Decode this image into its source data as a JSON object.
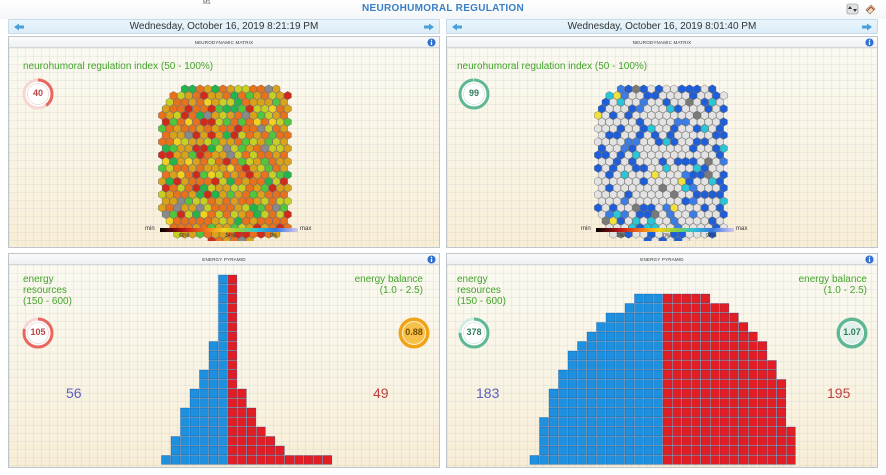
{
  "header": {
    "small_label": "MS",
    "title": "NEUROHUMORAL REGULATION"
  },
  "left": {
    "date": "Wednesday, October 16, 2019 8:21:19 PM",
    "matrix": {
      "header": "NEURODYNAMIC MATRIX",
      "label": "neurohumoral regulation index (50 - 100%)",
      "index_value": "40",
      "index_ring_fraction": 0.4,
      "legend": {
        "min": "min",
        "max": "max",
        "ticks": [
          "66%",
          "34%",
          "0%"
        ]
      }
    },
    "pyramid": {
      "header": "ENERGY PYRAMID",
      "resources_label": [
        "energy",
        "resources",
        "(150 - 600)"
      ],
      "resources_value": "105",
      "balance_label": [
        "energy balance",
        "(1.0 - 2.5)"
      ],
      "balance_value": "0.88",
      "left_value": "56",
      "right_value": "49"
    }
  },
  "right": {
    "date": "Wednesday, October 16, 2019 8:01:40 PM",
    "matrix": {
      "header": "NEURODYNAMIC MATRIX",
      "label": "neurohumoral regulation index (50 - 100%)",
      "index_value": "99",
      "index_ring_fraction": 0.99,
      "legend": {
        "min": "min",
        "max": "max",
        "ticks": [
          "2%",
          "0%",
          "98%"
        ]
      }
    },
    "pyramid": {
      "header": "ENERGY PYRAMID",
      "resources_label": [
        "energy",
        "resources",
        "(150 - 600)"
      ],
      "resources_value": "378",
      "balance_label": [
        "energy balance",
        "(1.0 - 2.5)"
      ],
      "balance_value": "1.07",
      "left_value": "183",
      "right_value": "195"
    }
  },
  "colors": {
    "accent": "#3a7fc4",
    "label_green": "#42a42b",
    "ring_red": "#e8675e",
    "ring_green": "#5fb893",
    "ring_orange": "#f0a318",
    "pyramid_blue": "#1e90e0",
    "pyramid_red": "#e31d24",
    "num_blue": "#5a5fc0",
    "num_red": "#c04040"
  },
  "icons": [
    "sort-arrows-icon",
    "notes-icon",
    "arrow-left-icon",
    "arrow-right-icon",
    "info-icon"
  ]
}
